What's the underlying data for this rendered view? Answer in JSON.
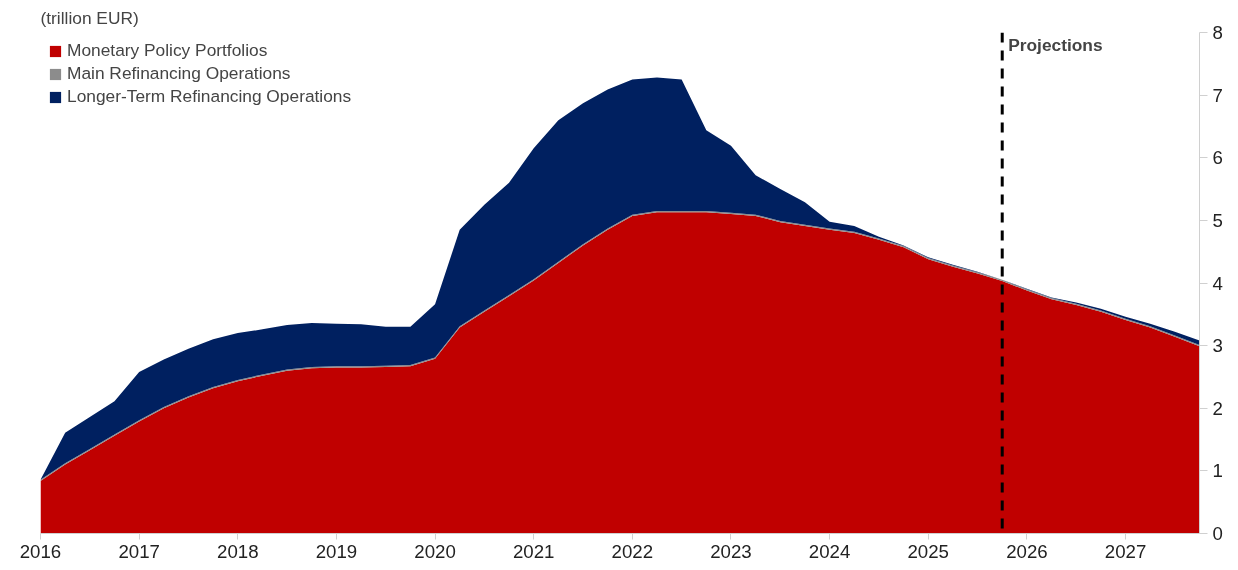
{
  "chart_data": {
    "type": "area",
    "stacked": true,
    "ylabel": "(trillion EUR)",
    "x": [
      2016.0,
      2016.25,
      2016.5,
      2016.75,
      2017.0,
      2017.25,
      2017.5,
      2017.75,
      2018.0,
      2018.25,
      2018.5,
      2018.75,
      2019.0,
      2019.25,
      2019.5,
      2019.75,
      2020.0,
      2020.25,
      2020.5,
      2020.75,
      2021.0,
      2021.25,
      2021.5,
      2021.75,
      2022.0,
      2022.25,
      2022.5,
      2022.75,
      2023.0,
      2023.25,
      2023.5,
      2023.75,
      2024.0,
      2024.25,
      2024.5,
      2024.75,
      2025.0,
      2025.25,
      2025.5,
      2025.75,
      2026.0,
      2026.25,
      2026.5,
      2026.75,
      2027.0,
      2027.25,
      2027.5,
      2027.75
    ],
    "series": [
      {
        "name": "Monetary Policy Portfolios",
        "color": "#c00000",
        "values": [
          0.84,
          1.1,
          1.33,
          1.56,
          1.79,
          2.0,
          2.17,
          2.32,
          2.43,
          2.52,
          2.6,
          2.64,
          2.65,
          2.65,
          2.66,
          2.67,
          2.79,
          3.29,
          3.54,
          3.79,
          4.04,
          4.32,
          4.6,
          4.85,
          5.07,
          5.13,
          5.13,
          5.13,
          5.1,
          5.07,
          4.97,
          4.91,
          4.85,
          4.8,
          4.69,
          4.57,
          4.38,
          4.26,
          4.15,
          4.03,
          3.88,
          3.74,
          3.65,
          3.54,
          3.41,
          3.29,
          3.14,
          2.99
        ]
      },
      {
        "name": "Main Refinancing Operations",
        "color": "#8c8c8c",
        "values": [
          0.02,
          0.02,
          0.02,
          0.02,
          0.02,
          0.02,
          0.02,
          0.02,
          0.02,
          0.02,
          0.02,
          0.02,
          0.02,
          0.02,
          0.02,
          0.02,
          0.02,
          0.02,
          0.02,
          0.02,
          0.02,
          0.02,
          0.02,
          0.02,
          0.02,
          0.02,
          0.02,
          0.02,
          0.02,
          0.02,
          0.02,
          0.02,
          0.02,
          0.02,
          0.02,
          0.02,
          0.02,
          0.02,
          0.02,
          0.02,
          0.02,
          0.02,
          0.02,
          0.02,
          0.02,
          0.02,
          0.02,
          0.02
        ]
      },
      {
        "name": "Longer-Term Refinancing Operations",
        "color": "#002060",
        "values": [
          0.0,
          0.49,
          0.51,
          0.53,
          0.77,
          0.76,
          0.76,
          0.76,
          0.75,
          0.72,
          0.71,
          0.7,
          0.68,
          0.67,
          0.62,
          0.61,
          0.85,
          1.54,
          1.69,
          1.79,
          2.09,
          2.26,
          2.25,
          2.22,
          2.16,
          2.13,
          2.1,
          1.29,
          1.07,
          0.63,
          0.51,
          0.36,
          0.11,
          0.09,
          0.03,
          0.01,
          0.01,
          0.01,
          0.01,
          0.0,
          0.01,
          0.01,
          0.02,
          0.03,
          0.03,
          0.04,
          0.06,
          0.07
        ]
      }
    ],
    "xlim": [
      2016,
      2027.75
    ],
    "xticks": [
      2016,
      2017,
      2018,
      2019,
      2020,
      2021,
      2022,
      2023,
      2024,
      2025,
      2026,
      2027
    ],
    "ylim": [
      0,
      8
    ],
    "yticks": [
      0,
      1,
      2,
      3,
      4,
      5,
      6,
      7,
      8
    ],
    "ref_lines": [
      {
        "axis": "x",
        "value": 2025.75,
        "label": "Projections",
        "color": "#000000",
        "line_style": "dashed"
      }
    ],
    "legend": "top left",
    "grid": false
  }
}
